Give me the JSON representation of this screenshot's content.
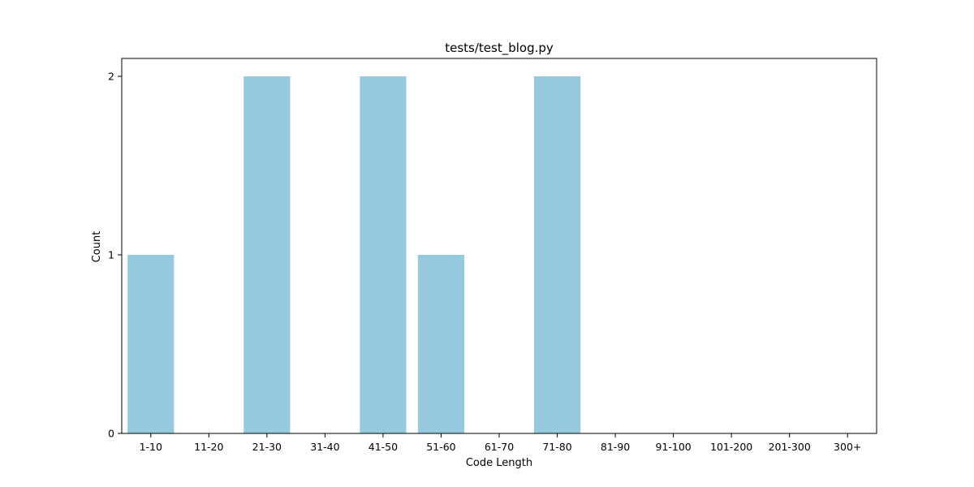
{
  "chart_data": {
    "type": "bar",
    "title": "tests/test_blog.py",
    "xlabel": "Code Length",
    "ylabel": "Count",
    "categories": [
      "1-10",
      "11-20",
      "21-30",
      "31-40",
      "41-50",
      "51-60",
      "61-70",
      "71-80",
      "81-90",
      "91-100",
      "101-200",
      "201-300",
      "300+"
    ],
    "values": [
      1,
      0,
      2,
      0,
      2,
      1,
      0,
      2,
      0,
      0,
      0,
      0,
      0
    ],
    "yticks": [
      "0",
      "1",
      "2"
    ],
    "ylim": [
      0,
      2.1
    ],
    "grid": false,
    "bar_color": "#96c9de"
  }
}
